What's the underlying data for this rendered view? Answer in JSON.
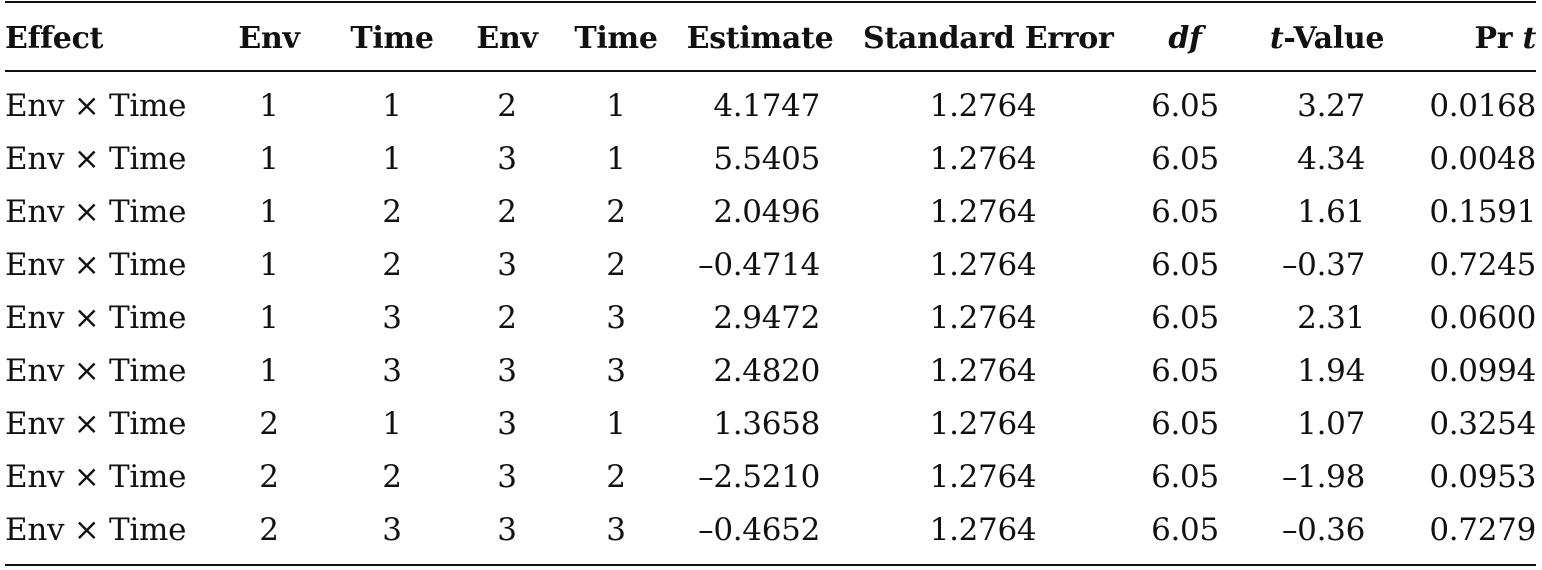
{
  "table": {
    "headers": {
      "effect": "Effect",
      "env1": "Env",
      "time1": "Time",
      "env2": "Env",
      "time2": "Time",
      "estimate": "Estimate",
      "standard_error": "Standard Error",
      "df": "df",
      "t_value_prefix": "t",
      "t_value_suffix": "-Value",
      "pr_prefix": "Pr ",
      "pr_suffix": "t"
    },
    "rows": [
      {
        "effect": "Env × Time",
        "env1": "1",
        "time1": "1",
        "env2": "2",
        "time2": "1",
        "estimate": "4.1747",
        "se": "1.2764",
        "df": "6.05",
        "t": "3.27",
        "p": "0.0168"
      },
      {
        "effect": "Env × Time",
        "env1": "1",
        "time1": "1",
        "env2": "3",
        "time2": "1",
        "estimate": "5.5405",
        "se": "1.2764",
        "df": "6.05",
        "t": "4.34",
        "p": "0.0048"
      },
      {
        "effect": "Env × Time",
        "env1": "1",
        "time1": "2",
        "env2": "2",
        "time2": "2",
        "estimate": "2.0496",
        "se": "1.2764",
        "df": "6.05",
        "t": "1.61",
        "p": "0.1591"
      },
      {
        "effect": "Env × Time",
        "env1": "1",
        "time1": "2",
        "env2": "3",
        "time2": "2",
        "estimate": "–0.4714",
        "se": "1.2764",
        "df": "6.05",
        "t": "–0.37",
        "p": "0.7245"
      },
      {
        "effect": "Env × Time",
        "env1": "1",
        "time1": "3",
        "env2": "2",
        "time2": "3",
        "estimate": "2.9472",
        "se": "1.2764",
        "df": "6.05",
        "t": "2.31",
        "p": "0.0600"
      },
      {
        "effect": "Env × Time",
        "env1": "1",
        "time1": "3",
        "env2": "3",
        "time2": "3",
        "estimate": "2.4820",
        "se": "1.2764",
        "df": "6.05",
        "t": "1.94",
        "p": "0.0994"
      },
      {
        "effect": "Env × Time",
        "env1": "2",
        "time1": "1",
        "env2": "3",
        "time2": "1",
        "estimate": "1.3658",
        "se": "1.2764",
        "df": "6.05",
        "t": "1.07",
        "p": "0.3254"
      },
      {
        "effect": "Env × Time",
        "env1": "2",
        "time1": "2",
        "env2": "3",
        "time2": "2",
        "estimate": "–2.5210",
        "se": "1.2764",
        "df": "6.05",
        "t": "–1.98",
        "p": "0.0953"
      },
      {
        "effect": "Env × Time",
        "env1": "2",
        "time1": "3",
        "env2": "3",
        "time2": "3",
        "estimate": "–0.4652",
        "se": "1.2764",
        "df": "6.05",
        "t": "–0.36",
        "p": "0.7279"
      }
    ]
  }
}
